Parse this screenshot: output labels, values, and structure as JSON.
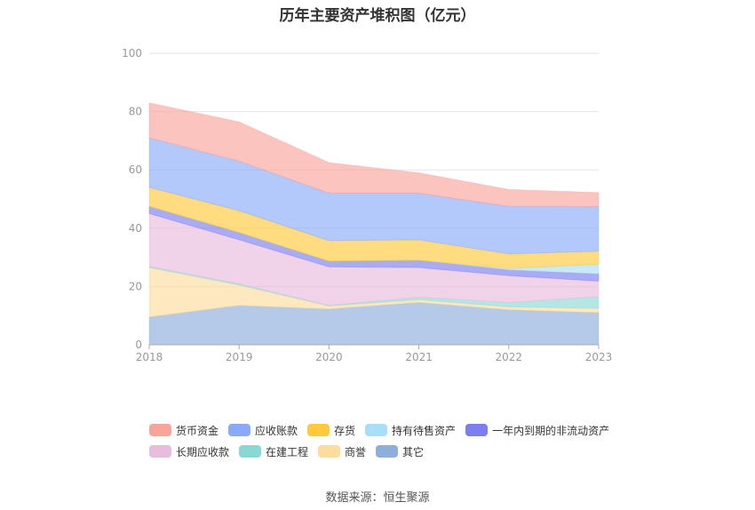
{
  "chart_data": {
    "type": "area",
    "stacked": true,
    "title": "历年主要资产堆积图（亿元）",
    "x": [
      "2018",
      "2019",
      "2020",
      "2021",
      "2022",
      "2023"
    ],
    "ylim": [
      0,
      100
    ],
    "yticks": [
      "0",
      "20",
      "40",
      "60",
      "80",
      "100"
    ],
    "grid": true,
    "legend_position": "bottom",
    "series": [
      {
        "name": "其它",
        "color": "#8eaedb",
        "values": [
          9.5,
          13.5,
          12.3,
          14.5,
          12.0,
          11.0
        ]
      },
      {
        "name": "商誉",
        "color": "#fedc9e",
        "values": [
          17.0,
          7.0,
          1.0,
          1.0,
          1.0,
          1.5
        ]
      },
      {
        "name": "在建工程",
        "color": "#8ad8d6",
        "values": [
          0.4,
          0.4,
          0.2,
          0.8,
          1.5,
          4.0
        ]
      },
      {
        "name": "长期应收款",
        "color": "#e8bcdc",
        "values": [
          18.1,
          15.1,
          13.2,
          10.2,
          9.2,
          5.3
        ]
      },
      {
        "name": "一年内到期的非流动资产",
        "color": "#7c7ef0",
        "values": [
          2.5,
          2.5,
          2.0,
          2.5,
          2.0,
          2.5
        ]
      },
      {
        "name": "持有待售资产",
        "color": "#a9defa",
        "values": [
          0.0,
          0.0,
          0.0,
          0.0,
          0.5,
          3.3
        ]
      },
      {
        "name": "存货",
        "color": "#ffc93c",
        "values": [
          6.5,
          7.5,
          7.0,
          7.0,
          5.0,
          4.5
        ]
      },
      {
        "name": "应收账款",
        "color": "#8aaaf9",
        "values": [
          17.0,
          17.0,
          16.3,
          16.0,
          16.3,
          15.3
        ]
      },
      {
        "name": "货币资金",
        "color": "#f9a49b",
        "values": [
          12.0,
          13.5,
          10.5,
          7.0,
          5.8,
          4.8
        ]
      }
    ],
    "legend_order": [
      "货币资金",
      "应收账款",
      "存货",
      "持有待售资产",
      "一年内到期的非流动资产",
      "长期应收款",
      "在建工程",
      "商誉",
      "其它"
    ]
  },
  "source_text": "数据来源：恒生聚源"
}
